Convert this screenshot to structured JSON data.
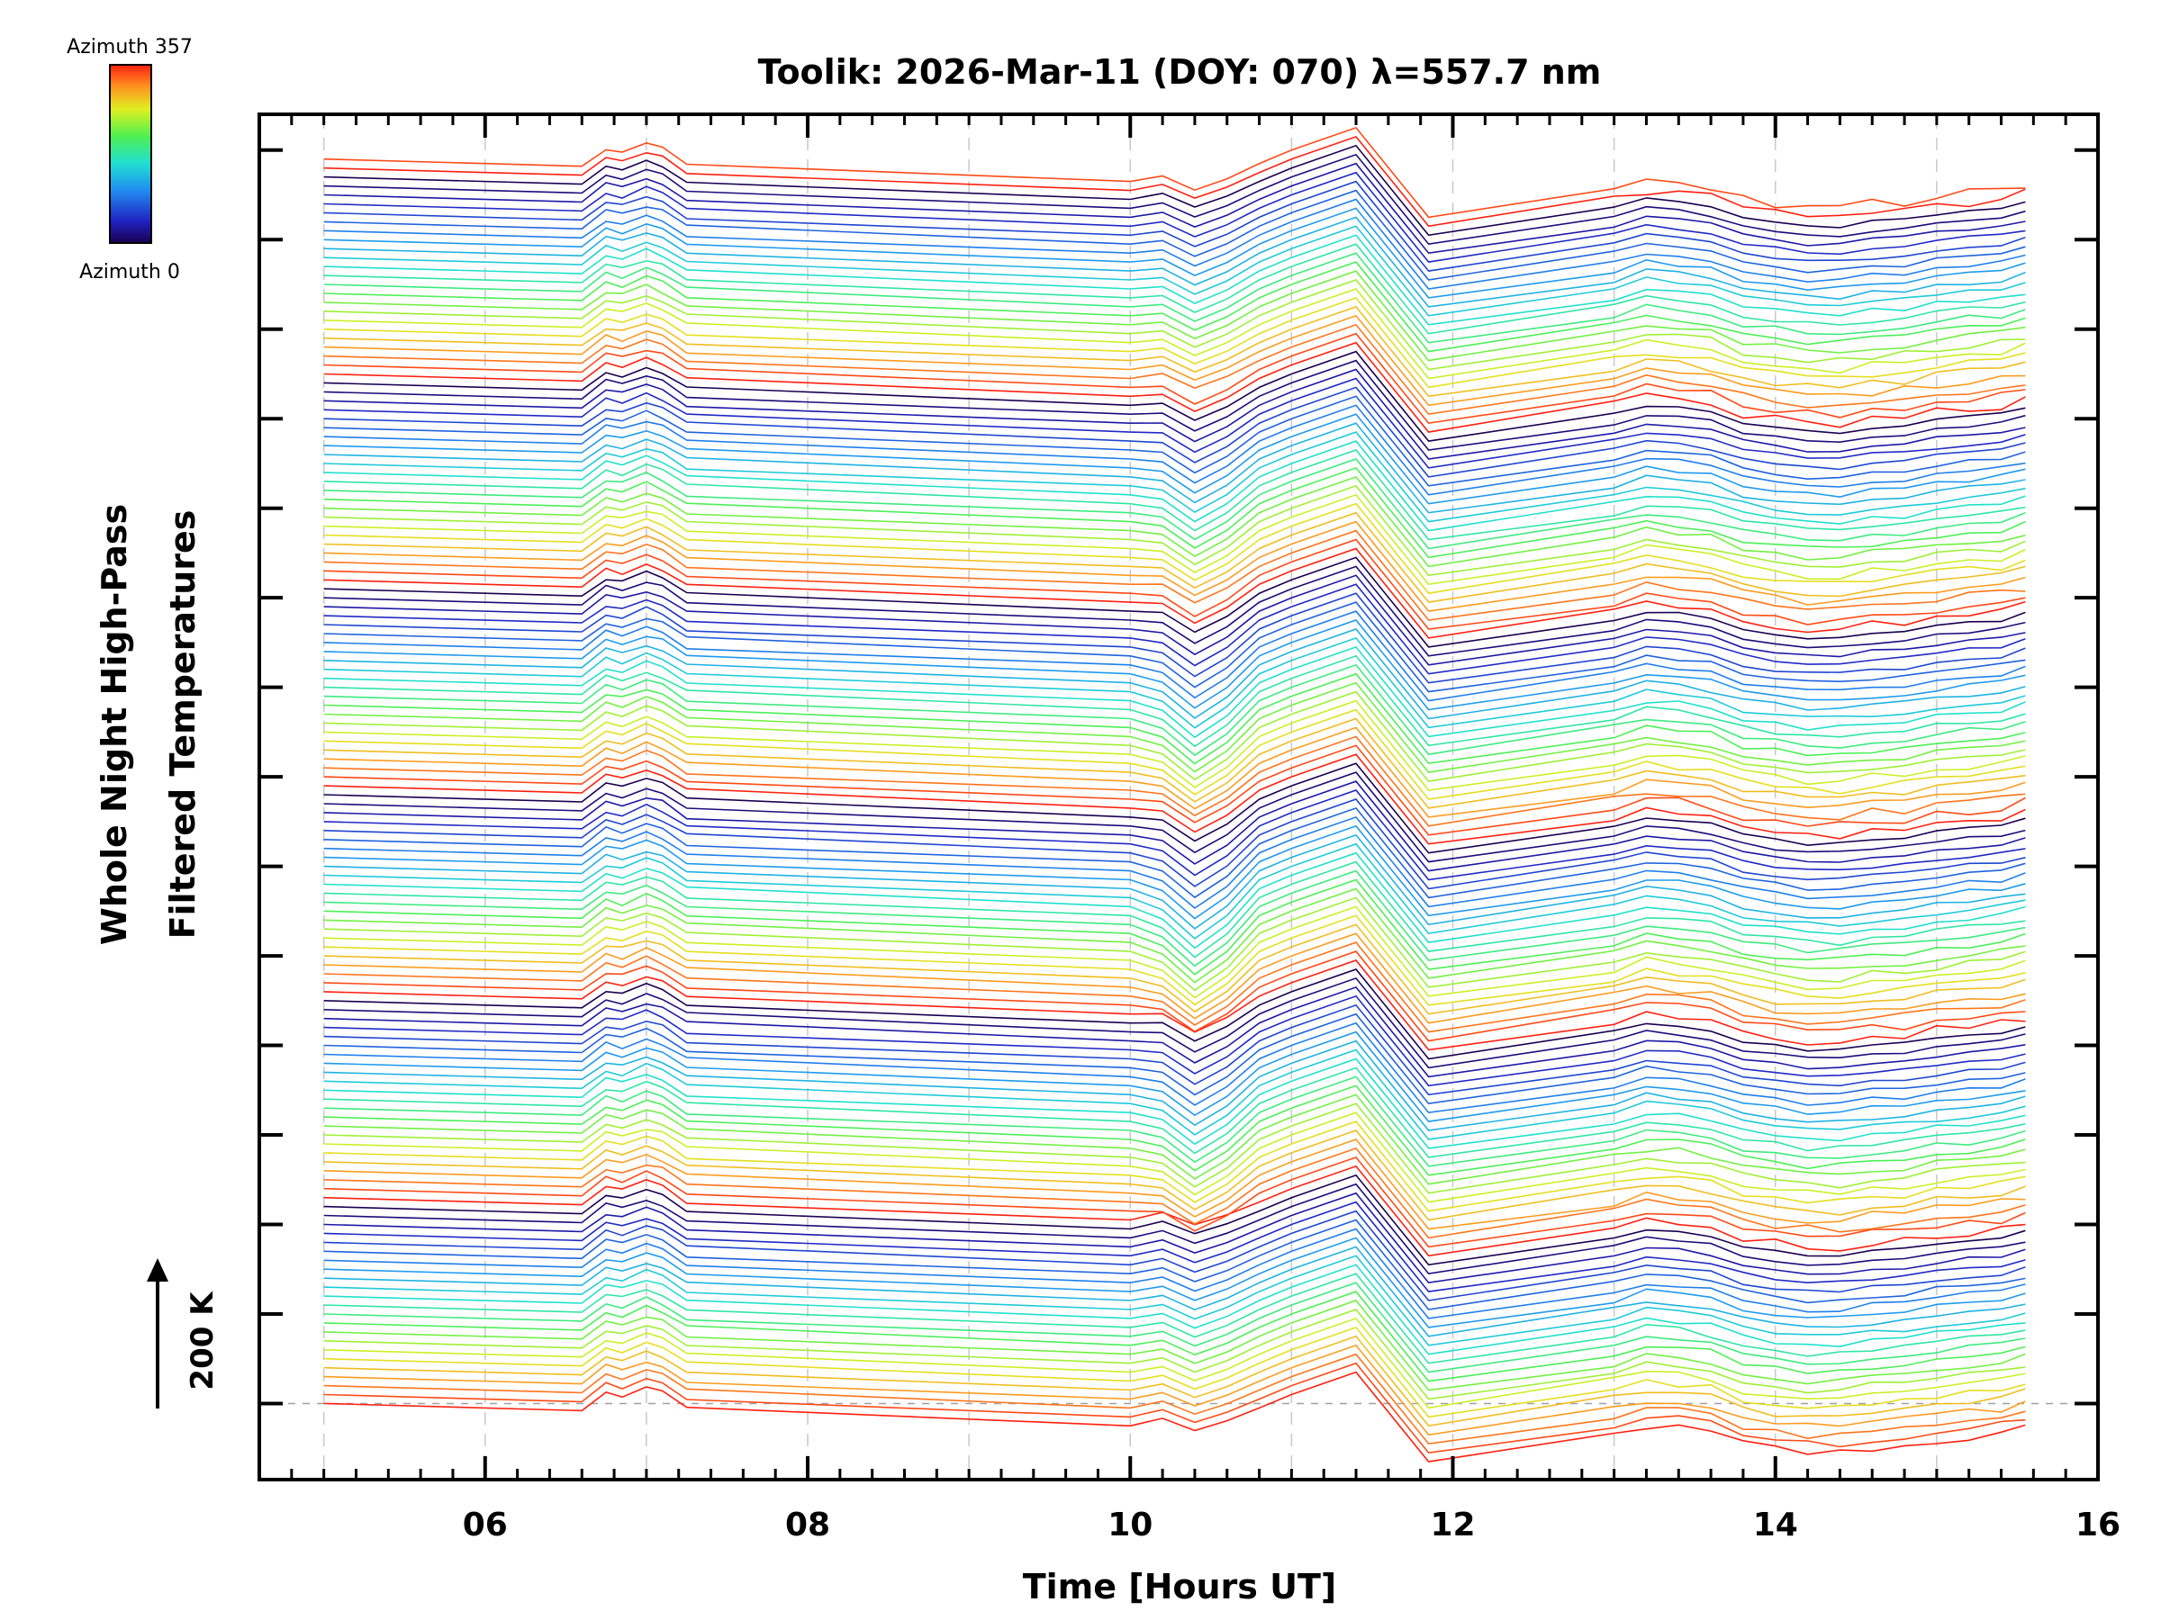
{
  "chart_data": {
    "type": "line",
    "title": "Toolik: 2026-Mar-11 (DOY: 070) λ=557.7 nm",
    "xlabel": "Time [Hours UT]",
    "ylabel_line1": "Whole Night High-Pass",
    "ylabel_line2": "Filtered Temperatures",
    "xlim": [
      4.6,
      16.0
    ],
    "x_ticks": [
      6,
      8,
      10,
      12,
      14,
      16
    ],
    "x_tick_labels": [
      "06",
      "08",
      "10",
      "12",
      "14",
      "16"
    ],
    "x_minor_step": 0.2,
    "y_units": "offset stack (1 unit = 200 K)",
    "ylim": [
      -0.85,
      14.4
    ],
    "y_major_ticks": [
      0,
      1,
      2,
      3,
      4,
      5,
      6,
      7,
      8,
      9,
      10,
      11,
      12,
      13,
      14
    ],
    "scale_bar_label": "200 K",
    "baseline_value": 0,
    "n_traces": 140,
    "trace_spacing": 0.1,
    "azimuth_range": [
      0,
      357
    ],
    "colormap": "rainbow",
    "colorbar_label_top": "Azimuth 357",
    "colorbar_label_bottom": "Azimuth 0",
    "time_samples": [
      5.0,
      6.6,
      6.75,
      6.85,
      7.0,
      7.1,
      7.25,
      10.0,
      10.2,
      10.4,
      10.6,
      10.8,
      11.0,
      11.4,
      11.85,
      13.0,
      13.2,
      13.4,
      13.6,
      13.8,
      14.0,
      14.2,
      14.4,
      14.6,
      14.8,
      15.0,
      15.2,
      15.4,
      15.55
    ],
    "mean_profile": [
      0.0,
      -0.08,
      0.12,
      0.08,
      0.18,
      0.12,
      -0.05,
      -0.25,
      -0.3,
      -0.55,
      -0.35,
      -0.05,
      0.1,
      0.35,
      -0.65,
      -0.35,
      -0.25,
      -0.28,
      -0.33,
      -0.45,
      -0.5,
      -0.55,
      -0.55,
      -0.5,
      -0.48,
      -0.42,
      -0.38,
      -0.35,
      -0.28
    ],
    "dip_by_azimuth_group": [
      0.25,
      0.7,
      0.9,
      0.8,
      0.6,
      0.35
    ],
    "late_jitter_amplitude": 0.07
  }
}
